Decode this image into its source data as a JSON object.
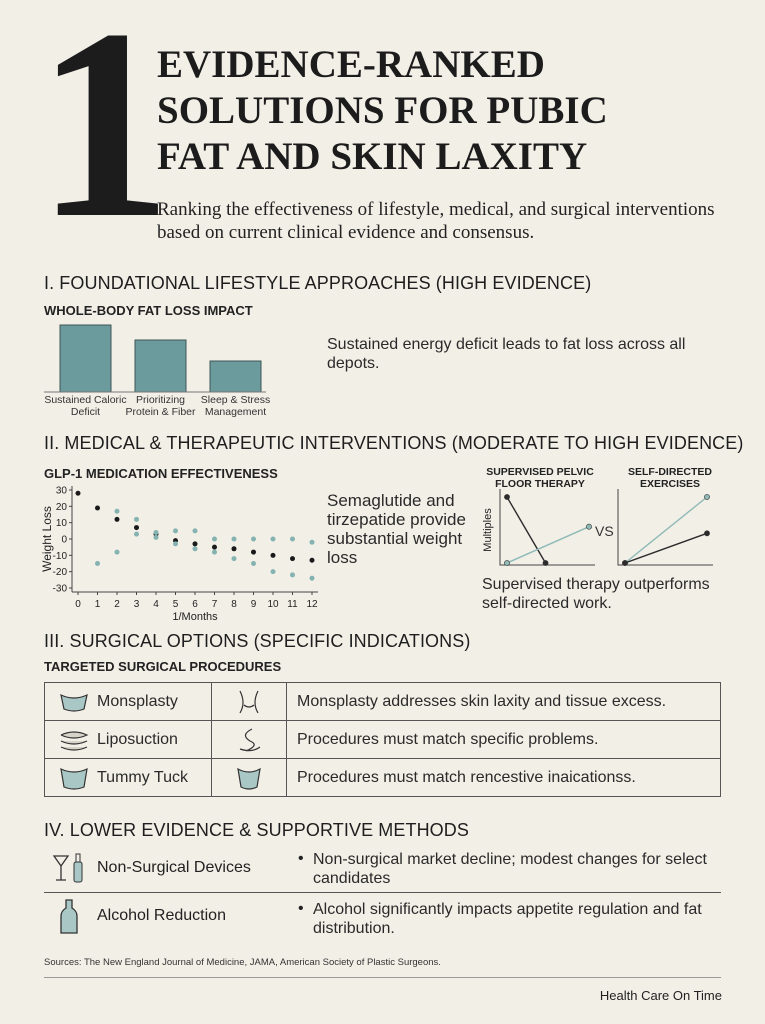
{
  "header": {
    "number": "1",
    "title": [
      "EVIDENCE-RANKED",
      "SOLUTIONS FOR PUBIC",
      "FAT AND SKIN LAXITY"
    ],
    "subtitle": "Ranking the effectiveness of lifestyle, medical, and surgical interventions based on current clinical evidence and consensus."
  },
  "sections": [
    {
      "heading": "I. FOUNDATIONAL LIFESTYLE APPROACHES (HIGH EVIDENCE)",
      "text": "Sustained energy deficit leads to fat loss across all depots."
    },
    {
      "heading": "II. MEDICAL & THERAPEUTIC INTERVENTIONS (MODERATE TO HIGH EVIDENCE)",
      "text": "Semaglutide and tirzepatide provide substantial weight loss",
      "vs": "VS",
      "caption": "Supervised therapy outperforms self-directed work."
    },
    {
      "heading": "III. SURGICAL OPTIONS (SPECIFIC INDICATIONS)",
      "subheading": "TARGETED SURGICAL PROCEDURES"
    },
    {
      "heading": "IV. LOWER EVIDENCE & SUPPORTIVE METHODS"
    }
  ],
  "table": {
    "rows": [
      [
        "Monsplasty",
        "Monsplasty addresses skin laxity and tissue excess."
      ],
      [
        "Liposuction",
        "Procedures must match specific problems."
      ],
      [
        "Tummy Tuck",
        "Procedures must match rencestive inaicationss."
      ]
    ]
  },
  "supportive": [
    {
      "name": "Non-Surgical Devices",
      "note": "Non-surgical market decline; modest changes for select candidates"
    },
    {
      "name": "Alcohol Reduction",
      "note": "Alcohol significantly impacts appetite regulation and fat distribution."
    }
  ],
  "sources": "Sources: The New England Journal of Medicine, JAMA, American Society of Plastic Surgeons.",
  "brand": "Health Care On Time",
  "chart_data": [
    {
      "type": "bar",
      "title": "WHOLE-BODY FAT LOSS IMPACT",
      "categories": [
        "Sustained Caloric Deficit",
        "Prioritizing Protein & Fiber",
        "Sleep & Stress Management"
      ],
      "values": [
        67,
        52,
        31
      ],
      "color": "#6b9b9d",
      "ylim": [
        0,
        70
      ]
    },
    {
      "type": "scatter",
      "title": "GLP-1 MEDICATION EFFECTIVENESS",
      "xlabel": "1/Months",
      "ylabel": "Weight Loss",
      "xlim": [
        0,
        12
      ],
      "xticks": [
        0,
        1,
        2,
        3,
        4,
        5,
        6,
        7,
        8,
        9,
        10,
        11,
        12
      ],
      "ylim": [
        -30,
        30
      ],
      "yticks": [
        30,
        20,
        10,
        0,
        -10,
        -20,
        -30
      ],
      "series": [
        {
          "color": "#1a1a1a",
          "x": [
            0,
            1,
            2,
            3,
            4,
            5,
            6,
            7,
            8,
            9,
            10,
            11,
            12
          ],
          "values": [
            28,
            19,
            12,
            7,
            3,
            -1,
            -3,
            -5,
            -6,
            -8,
            -10,
            -12,
            -13
          ]
        },
        {
          "color": "#84b3b1",
          "x": [
            2,
            3,
            4,
            5,
            6,
            7,
            8,
            9,
            10,
            11,
            12
          ],
          "values": [
            17,
            12,
            4,
            5,
            5,
            0,
            0,
            0,
            0,
            0,
            -2
          ]
        },
        {
          "color": "#84b3b1",
          "x": [
            1,
            2,
            3,
            4,
            5,
            6,
            7,
            8,
            9,
            10,
            11,
            12
          ],
          "values": [
            -15,
            -8,
            3,
            1,
            -3,
            -6,
            -8,
            -12,
            -15,
            -20,
            -22,
            -24
          ]
        }
      ]
    },
    {
      "type": "line",
      "title": "SUPERVISED PELVIC FLOOR THERAPY",
      "ylabel": "Multiples",
      "xlim": [
        0,
        1
      ],
      "ylim": [
        0,
        10
      ],
      "series": [
        {
          "color": "#2b2b2b",
          "x": [
            0,
            0.47
          ],
          "values": [
            10,
            0
          ]
        },
        {
          "color": "#8fbab7",
          "x": [
            0,
            1
          ],
          "values": [
            0,
            5.5
          ]
        }
      ]
    },
    {
      "type": "line",
      "title": "SELF-DIRECTED EXERCISES",
      "xlim": [
        0,
        1
      ],
      "ylim": [
        0,
        10
      ],
      "series": [
        {
          "color": "#8fbab7",
          "x": [
            0,
            1
          ],
          "values": [
            0,
            10
          ]
        },
        {
          "color": "#2b2b2b",
          "x": [
            0,
            1
          ],
          "values": [
            0,
            4.5
          ]
        }
      ]
    }
  ]
}
